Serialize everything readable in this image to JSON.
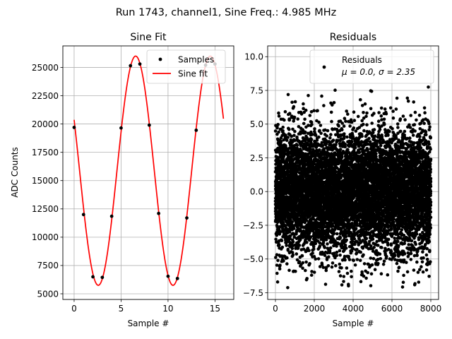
{
  "figure": {
    "suptitle": "Run 1743, channel1, Sine Freq.: 4.985 MHz"
  },
  "chart_data": [
    {
      "type": "scatter",
      "title": "Sine Fit",
      "xlabel": "Sample #",
      "ylabel": "ADC Counts",
      "xlim": [
        -1.2,
        17
      ],
      "ylim": [
        4500,
        26900
      ],
      "xticks": [
        0,
        5,
        10,
        15
      ],
      "yticks": [
        5000,
        7500,
        10000,
        12500,
        15000,
        17500,
        20000,
        22500,
        25000
      ],
      "ytick_labels": [
        "5000",
        "7500",
        "10000",
        "12500",
        "15000",
        "17500",
        "20000",
        "22500",
        "25000"
      ],
      "grid": true,
      "legend_position": "top-right",
      "series": [
        {
          "name": "Samples",
          "kind": "markers",
          "color": "#000000",
          "x": [
            0,
            1,
            2,
            3,
            4,
            5,
            6,
            7,
            8,
            9,
            10,
            11,
            12,
            13,
            14,
            15
          ],
          "y": [
            19700,
            12000,
            6500,
            6450,
            11850,
            19650,
            25150,
            25300,
            19900,
            12100,
            6550,
            6350,
            11700,
            19450,
            25200,
            25300
          ]
        },
        {
          "name": "Sine fit",
          "kind": "line",
          "color": "#ff0000",
          "model": {
            "offset": 15875,
            "amplitude": 10125,
            "period": 7.957,
            "peak_at": 6.55,
            "x_range": [
              0,
              15.9
            ]
          }
        }
      ]
    },
    {
      "type": "scatter",
      "title": "Residuals",
      "xlabel": "Sample #",
      "ylabel": "",
      "xlim": [
        -400,
        8400
      ],
      "ylim": [
        -8.0,
        10.8
      ],
      "xticks": [
        0,
        2000,
        4000,
        6000,
        8000
      ],
      "yticks": [
        -7.5,
        -5.0,
        -2.5,
        0.0,
        2.5,
        5.0,
        7.5,
        10.0
      ],
      "ytick_labels": [
        "−7.5",
        "−5.0",
        "−2.5",
        "0.0",
        "2.5",
        "5.0",
        "7.5",
        "10.0"
      ],
      "grid": true,
      "legend_position": "top-right",
      "series": [
        {
          "name": "Residuals",
          "name_line2": "μ = 0.0, σ = 2.35",
          "kind": "markers",
          "color": "#000000",
          "n_points": 8000,
          "mean": 0.0,
          "std": 2.35,
          "min": -7.3,
          "max": 7.9,
          "x_range": [
            0,
            8000
          ]
        }
      ]
    }
  ]
}
